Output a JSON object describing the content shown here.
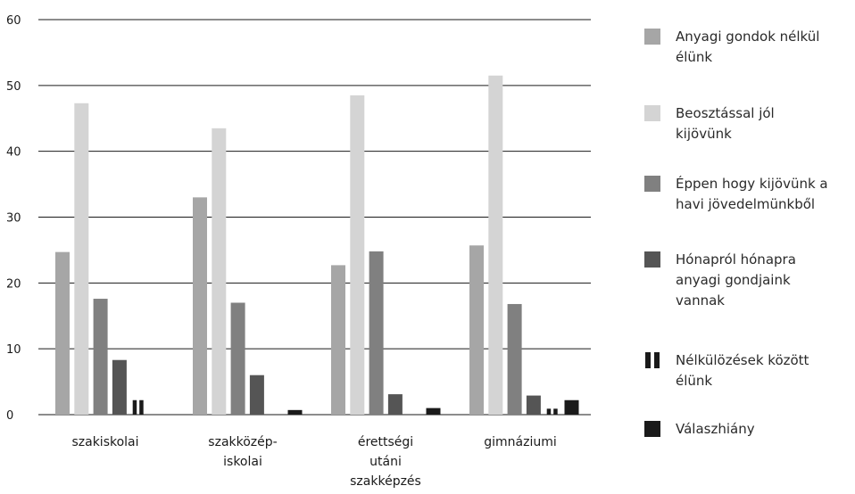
{
  "chart_data": {
    "type": "bar",
    "categories": [
      "szakiskolai",
      "szakközép-\niskolai",
      "érettségi\nutáni\nszakképzés",
      "gimnáziumi"
    ],
    "ylim": [
      0,
      60
    ],
    "yticks": [
      0,
      10,
      20,
      30,
      40,
      50,
      60
    ],
    "grid": true,
    "legend_position": "right",
    "series": [
      {
        "name": "Anyagi gondok nélkül\nélünk",
        "color": "#a6a6a6",
        "values": [
          24.7,
          33.0,
          22.7,
          25.7
        ]
      },
      {
        "name": "Beosztással jól\nkijövünk",
        "color": "#d4d4d4",
        "values": [
          47.3,
          43.5,
          48.5,
          51.5
        ]
      },
      {
        "name": "Éppen hogy kijövünk a\nhavi jövedelmünkből",
        "color": "#808080",
        "values": [
          17.6,
          17.0,
          24.8,
          16.8
        ]
      },
      {
        "name": "Hónapról hónapra\nanyagi gondjaink\nvannak",
        "color": "#555555",
        "values": [
          8.3,
          6.0,
          3.1,
          2.9
        ]
      },
      {
        "name": "Nélkülözések között\nélünk",
        "color": "#1a1a1a",
        "pattern": "striped",
        "values": [
          2.2,
          0.0,
          0.0,
          0.9
        ]
      },
      {
        "name": "Válaszhiány",
        "color": "#1a1a1a",
        "values": [
          0.0,
          0.7,
          1.0,
          2.2
        ]
      }
    ]
  }
}
